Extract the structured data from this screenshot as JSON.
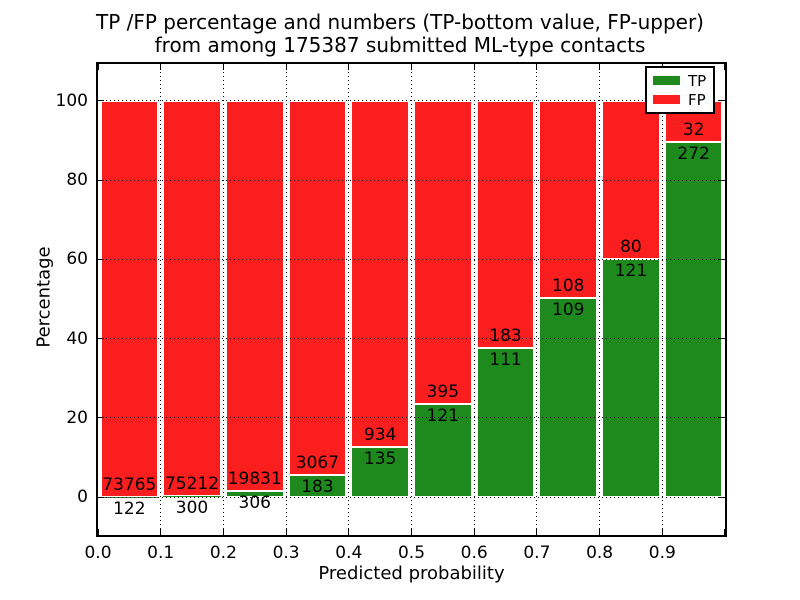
{
  "figure": {
    "title_line1": "TP /FP percentage and numbers (TP-bottom value, FP-upper)",
    "title_line2": "from among 175387 submitted ML-type contacts"
  },
  "axes": {
    "xlabel": "Predicted probability",
    "ylabel": "Percentage",
    "xtick_labels": [
      "0.0",
      "0.1",
      "0.2",
      "0.3",
      "0.4",
      "0.5",
      "0.6",
      "0.7",
      "0.8",
      "0.9"
    ],
    "ytick_labels": [
      "0",
      "20",
      "40",
      "60",
      "80",
      "100"
    ]
  },
  "legend": {
    "entries": [
      {
        "label": "TP",
        "color": "#1e8a1e"
      },
      {
        "label": "FP",
        "color": "#fa1e1e"
      }
    ]
  },
  "colors": {
    "tp_green": "#1e8a1e",
    "fp_red": "#fa1e1e",
    "bar_edge": "#ffffff",
    "grid": "#000000"
  },
  "chart_data": {
    "type": "bar",
    "subtype": "stacked-normalized-percent",
    "title": "TP /FP percentage and numbers (TP-bottom value, FP-upper) from among 175387 submitted ML-type contacts",
    "xlabel": "Predicted probability",
    "ylabel": "Percentage",
    "xlim": [
      0.0,
      1.0
    ],
    "ylim": [
      0,
      100
    ],
    "grid": "dotted, drawn above bars",
    "legend_position": "upper right",
    "total_contacts": 175387,
    "bin_width": 0.1,
    "categories": [
      "0.0-0.1",
      "0.1-0.2",
      "0.2-0.3",
      "0.3-0.4",
      "0.4-0.5",
      "0.5-0.6",
      "0.6-0.7",
      "0.7-0.8",
      "0.8-0.9",
      "0.9-1.0"
    ],
    "series": [
      {
        "name": "TP",
        "color": "#1e8a1e",
        "position": "bottom",
        "counts": [
          122,
          300,
          306,
          183,
          135,
          121,
          111,
          109,
          121,
          272
        ]
      },
      {
        "name": "FP",
        "color": "#fa1e1e",
        "position": "top",
        "counts": [
          73765,
          75212,
          19831,
          3067,
          934,
          395,
          183,
          108,
          80,
          32
        ]
      }
    ],
    "tp_percent_heights": [
      0.17,
      0.4,
      1.52,
      5.63,
      12.63,
      23.45,
      37.76,
      50.23,
      60.2,
      89.47
    ]
  }
}
